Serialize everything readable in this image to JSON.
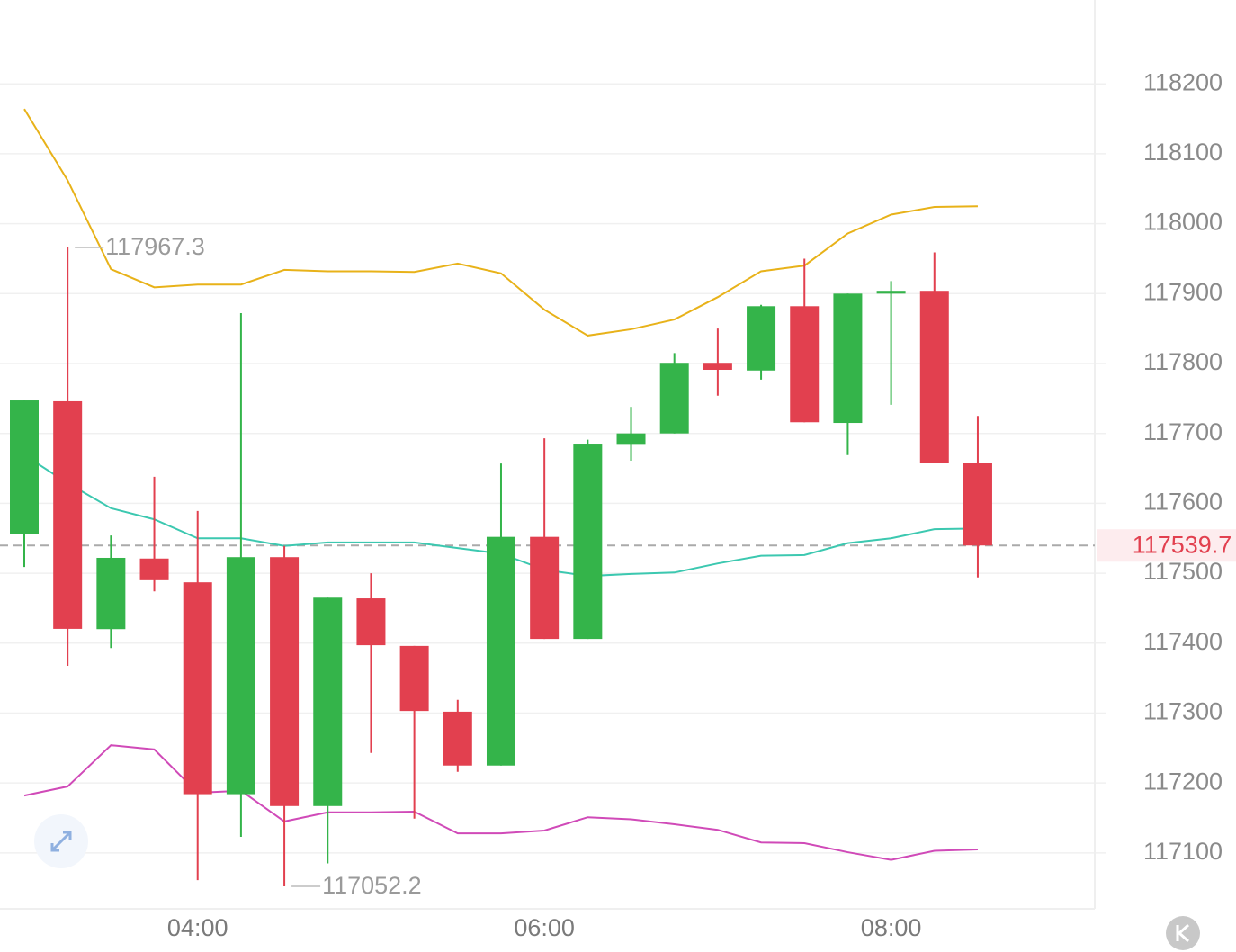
{
  "chart_data": {
    "type": "candlestick",
    "categories": [
      null,
      null,
      null,
      null,
      "04:00",
      null,
      null,
      null,
      null,
      null,
      null,
      null,
      "06:00",
      null,
      null,
      null,
      null,
      null,
      null,
      null,
      "08:00",
      null,
      null
    ],
    "open": [
      117556.7,
      117746,
      117420,
      117521,
      117487,
      117184,
      117523,
      117167,
      117464,
      117396,
      117302,
      117225,
      117552,
      117406,
      117685,
      117700,
      117801,
      117790,
      117882,
      117715,
      117900,
      117904,
      117658
    ],
    "high": [
      117747,
      117967.3,
      117554,
      117638,
      117589,
      117872,
      117539,
      117465,
      117500,
      117396,
      117319,
      117657,
      117693,
      117691,
      117738,
      117815,
      117850,
      117884,
      117950,
      117900,
      117918,
      117959,
      117725
    ],
    "low": [
      117509,
      117367.6,
      117393,
      117474,
      117061,
      117123,
      117052.2,
      117085,
      117243,
      117149,
      117216,
      117225,
      117406,
      117406,
      117661,
      117700,
      117754,
      117777,
      117716,
      117669,
      117741,
      117658,
      117494
    ],
    "close": [
      117747.2,
      117420.4,
      117522,
      117490,
      117184,
      117523,
      117167,
      117465,
      117397,
      117303,
      117225,
      117552,
      117406,
      117685.4,
      117700,
      117801,
      117791,
      117882,
      117716,
      117900,
      117904,
      117658,
      117539.7
    ],
    "up_color": "#34b44a",
    "down_color": "#e2404f",
    "lines": [
      {
        "color": "#e8b219",
        "values": [
          118164,
          118062,
          117935,
          117909,
          117913,
          117913,
          117934,
          117932,
          117932,
          117931,
          117943,
          117929,
          117877,
          117840,
          117849,
          117863,
          117895,
          117932,
          117940,
          117986,
          118013,
          118024,
          118025
        ]
      },
      {
        "color": "#3cc8b0",
        "values": [
          117669,
          117629,
          117593,
          117577,
          117550,
          117550,
          117539,
          117544,
          117544,
          117544,
          117536,
          117528,
          117505,
          117496,
          117499,
          117501,
          117514,
          117525,
          117526,
          117543,
          117550,
          117563,
          117564
        ]
      },
      {
        "color": "#d04ab8",
        "values": [
          117182,
          117195,
          117254,
          117248,
          117186,
          117189,
          117145,
          117158,
          117158,
          117159,
          117128,
          117128,
          117132,
          117151,
          117148,
          117141,
          117133,
          117115,
          117114,
          117101,
          117090,
          117103,
          117105
        ]
      }
    ],
    "ylim": [
      117020,
      118320
    ],
    "yticks": [
      117100,
      117200,
      117300,
      117400,
      117500,
      117600,
      117700,
      117800,
      117900,
      118000,
      118100,
      118200
    ],
    "grid": true
  }
}
